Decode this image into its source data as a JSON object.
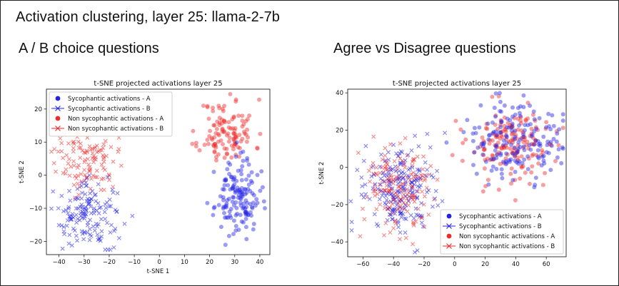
{
  "page": {
    "title": "Activation clustering, layer 25: llama-2-7b",
    "left_heading": "A / B choice questions",
    "right_heading": "Agree vs Disagree questions"
  },
  "colors": {
    "syc": "#2323e6",
    "non_syc": "#ee2a2a",
    "purple": "#a03a86"
  },
  "chart_data": [
    {
      "type": "scatter",
      "title": "t-SNE projected activations layer 25",
      "xlabel": "t-SNE 1",
      "ylabel": "t-SNE 2",
      "xlim": [
        -45,
        44
      ],
      "ylim": [
        -24,
        26
      ],
      "xticks": [
        -40,
        -30,
        -20,
        -10,
        0,
        10,
        20,
        30,
        40
      ],
      "yticks": [
        -20,
        -10,
        0,
        10,
        20
      ],
      "legend_position": "top-left",
      "legend": [
        {
          "label": "Sycophantic activations - A",
          "marker": "dot",
          "color": "#2323e6"
        },
        {
          "label": "Sycophantic activations - B",
          "marker": "x",
          "color": "#2323e6"
        },
        {
          "label": "Non sycophantic activations - A",
          "marker": "dot",
          "color": "#ee2a2a"
        },
        {
          "label": "Non sycophantic activations - B",
          "marker": "x",
          "color": "#ee2a2a"
        }
      ],
      "clusters": [
        {
          "series": "Non sycophantic activations - A",
          "marker": "dot",
          "color": "#ee2a2a",
          "n": 120,
          "seed": 11,
          "cx": 27,
          "cy": 13,
          "rx": 10,
          "ry": 9
        },
        {
          "series": "Sycophantic activations - A",
          "marker": "dot",
          "color": "#2323e6",
          "n": 150,
          "seed": 23,
          "cx": 31,
          "cy": -7,
          "rx": 8,
          "ry": 10
        },
        {
          "series": "Non sycophantic activations - B",
          "marker": "x",
          "color": "#ee2a2a",
          "n": 120,
          "seed": 37,
          "cx": -29,
          "cy": 5,
          "rx": 11,
          "ry": 9
        },
        {
          "series": "Sycophantic activations - B",
          "marker": "x",
          "color": "#2323e6",
          "n": 150,
          "seed": 41,
          "cx": -28,
          "cy": -12,
          "rx": 12,
          "ry": 9
        }
      ]
    },
    {
      "type": "scatter",
      "title": "t-SNE projected activations layer 25",
      "xlabel": "",
      "ylabel": "t-SNE 2",
      "xlim": [
        -70,
        73
      ],
      "ylim": [
        -48,
        42
      ],
      "xticks": [
        -60,
        -40,
        -20,
        0,
        20,
        40,
        60
      ],
      "yticks": [
        -40,
        -20,
        0,
        20,
        40
      ],
      "legend_position": "bottom-right",
      "legend": [
        {
          "label": "Sycophantic activations - A",
          "marker": "dot",
          "color": "#2323e6"
        },
        {
          "label": "Sycophantic activations - B",
          "marker": "x",
          "color": "#2323e6"
        },
        {
          "label": "Non sycophantic activations - A",
          "marker": "dot",
          "color": "#ee2a2a"
        },
        {
          "label": "Non sycophantic activations - B",
          "marker": "x",
          "color": "#ee2a2a"
        }
      ],
      "clusters": [
        {
          "series": "Non sycophantic activations - A",
          "marker": "dot",
          "color": "#ee2a2a",
          "n": 170,
          "seed": 53,
          "cx": 38,
          "cy": 12,
          "rx": 27,
          "ry": 19
        },
        {
          "series": "Sycophantic activations - A",
          "marker": "dot",
          "color": "#2323e6",
          "n": 170,
          "seed": 67,
          "cx": 38,
          "cy": 12,
          "rx": 27,
          "ry": 19
        },
        {
          "series": "Non sycophantic activations - B",
          "marker": "x",
          "color": "#ee2a2a",
          "n": 190,
          "seed": 71,
          "cx": -36,
          "cy": -12,
          "rx": 22,
          "ry": 22
        },
        {
          "series": "Sycophantic activations - B",
          "marker": "x",
          "color": "#2323e6",
          "n": 190,
          "seed": 83,
          "cx": -36,
          "cy": -12,
          "rx": 22,
          "ry": 22
        }
      ]
    }
  ]
}
